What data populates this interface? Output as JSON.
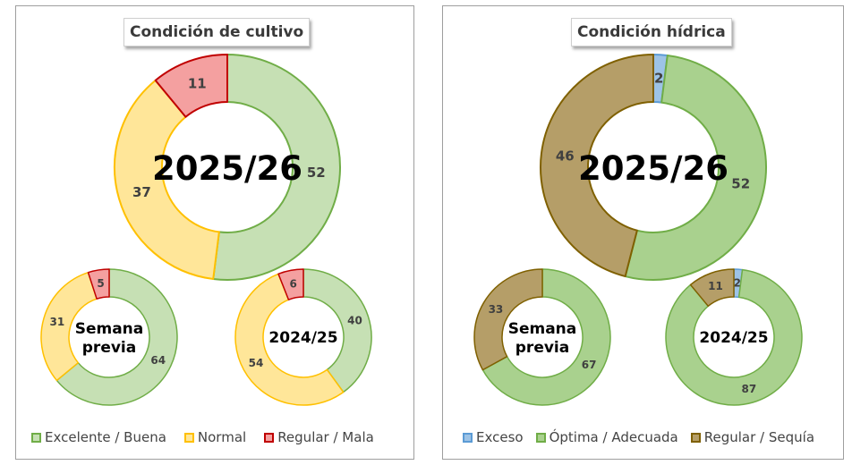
{
  "chart_data": [
    {
      "type": "donut",
      "title": "Condición de cultivo",
      "legend": [
        {
          "label": "Excelente / Buena",
          "fill": "#c6e0b4",
          "stroke": "#70ad47"
        },
        {
          "label": "Normal",
          "fill": "#ffe699",
          "stroke": "#ffc000"
        },
        {
          "label": "Regular / Mala",
          "fill": "#f4a0a0",
          "stroke": "#c00000"
        }
      ],
      "donuts": [
        {
          "center_label": "2025/26",
          "values": [
            52,
            37,
            11
          ]
        },
        {
          "center_label": "Semana previa",
          "values": [
            64,
            31,
            5
          ]
        },
        {
          "center_label": "2024/25",
          "values": [
            40,
            54,
            6
          ]
        }
      ]
    },
    {
      "type": "donut",
      "title": "Condición hídrica",
      "legend": [
        {
          "label": "Exceso",
          "fill": "#9dc3e6",
          "stroke": "#5b9bd5"
        },
        {
          "label": "Óptima / Adecuada",
          "fill": "#a9d18e",
          "stroke": "#70ad47"
        },
        {
          "label": "Regular / Sequía",
          "fill": "#b59e68",
          "stroke": "#7f6000"
        }
      ],
      "donuts": [
        {
          "center_label": "2025/26",
          "values": [
            2,
            52,
            46
          ]
        },
        {
          "center_label": "Semana previa",
          "values": [
            0,
            67,
            33
          ]
        },
        {
          "center_label": "2024/25",
          "values": [
            2,
            87,
            11
          ]
        }
      ]
    }
  ]
}
